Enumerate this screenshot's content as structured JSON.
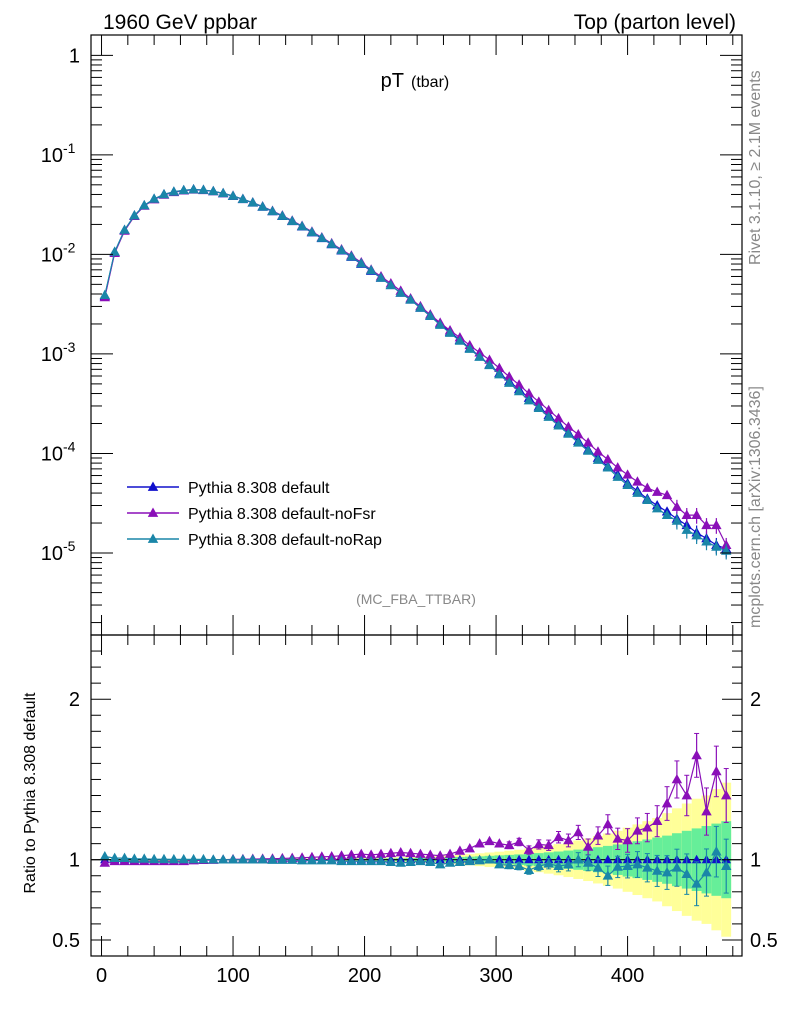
{
  "header": {
    "left": "1960 GeV ppbar",
    "right": "Top (parton level)"
  },
  "main_title": {
    "main": "pT",
    "sub": "(tbar)"
  },
  "side": {
    "rivet": "Rivet 3.1.10, ≥ 2.1M events",
    "mcplots": "mcplots.cern.ch [arXiv:1306.3436]"
  },
  "analysis_tag": "(MC_FBA_TTBAR)",
  "ratio_ylabel": "Ratio to Pythia 8.308 default",
  "colors": {
    "default": "#1010cc",
    "noFsr": "#8a0fb8",
    "noRap": "#1a86a8",
    "band_yellow": "#ffff99",
    "band_green": "#66ee99"
  },
  "chart_data": [
    {
      "type": "scatter",
      "panel": "main",
      "yscale": "log",
      "xlim": [
        -8,
        487
      ],
      "ylim": [
        1.5e-06,
        1.6
      ],
      "ytick_labels": [
        "1",
        "10^-1",
        "10^-2",
        "10^-3",
        "10^-4",
        "10^-5"
      ],
      "legend": {
        "placement": "bottom-left"
      },
      "x": [
        2.5,
        10,
        17.5,
        25,
        32.5,
        40,
        47.5,
        55,
        62.5,
        70,
        77.5,
        85,
        92.5,
        100,
        107.5,
        115,
        122.5,
        130,
        137.5,
        145,
        152.5,
        160,
        167.5,
        175,
        182.5,
        190,
        197.5,
        205,
        212.5,
        220,
        227.5,
        235,
        242.5,
        250,
        257.5,
        265,
        272.5,
        280,
        287.5,
        295,
        302.5,
        310,
        317.5,
        325,
        332.5,
        340,
        347.5,
        355,
        362.5,
        370,
        377.5,
        385,
        392.5,
        400,
        407.5,
        415,
        422.5,
        430,
        437.5,
        445,
        452.5,
        460,
        467.5,
        475
      ],
      "series": [
        {
          "name": "Pythia 8.308 default",
          "color": "#1010cc",
          "values": [
            0.0038,
            0.0105,
            0.0175,
            0.0245,
            0.031,
            0.036,
            0.04,
            0.0425,
            0.044,
            0.0448,
            0.0442,
            0.043,
            0.041,
            0.0385,
            0.0358,
            0.033,
            0.03,
            0.027,
            0.0242,
            0.0215,
            0.019,
            0.0166,
            0.0145,
            0.0126,
            0.0109,
            0.0094,
            0.008,
            0.0068,
            0.0058,
            0.0049,
            0.0041,
            0.0035,
            0.0029,
            0.0024,
            0.002,
            0.00166,
            0.00138,
            0.00114,
            0.00094,
            0.00078,
            0.00064,
            0.00053,
            0.00044,
            0.00036,
            0.000295,
            0.000242,
            0.000198,
            0.000162,
            0.000133,
            0.000109,
            9e-05,
            7.4e-05,
            6.1e-05,
            5e-05,
            4.2e-05,
            3.5e-05,
            3e-05,
            2.6e-05,
            2.2e-05,
            1.9e-05,
            1.6e-05,
            1.4e-05,
            1.2e-05,
            1.1e-05
          ]
        },
        {
          "name": "Pythia 8.308 default-noFsr",
          "color": "#8a0fb8",
          "values": [
            0.0037,
            0.0103,
            0.0172,
            0.0242,
            0.0307,
            0.0356,
            0.0396,
            0.0421,
            0.0437,
            0.0446,
            0.0441,
            0.0429,
            0.041,
            0.0386,
            0.0359,
            0.0331,
            0.0302,
            0.0273,
            0.0245,
            0.0218,
            0.0193,
            0.0169,
            0.0148,
            0.0129,
            0.0112,
            0.0097,
            0.0083,
            0.007,
            0.006,
            0.0051,
            0.0043,
            0.0036,
            0.003,
            0.00248,
            0.00205,
            0.00172,
            0.00146,
            0.00122,
            0.00103,
            0.00087,
            0.00072,
            0.00059,
            0.00049,
            0.0004,
            0.00033,
            0.000272,
            0.000225,
            0.000185,
            0.000155,
            0.000128,
            0.000104,
            8.7e-05,
            7.2e-05,
            6.1e-05,
            5.2e-05,
            4.5e-05,
            4.1e-05,
            3.8e-05,
            2.9e-05,
            2.4e-05,
            2.4e-05,
            1.9e-05,
            1.9e-05,
            1.2e-05
          ]
        },
        {
          "name": "Pythia 8.308 default-noRap",
          "color": "#1a86a8",
          "values": [
            0.0039,
            0.0106,
            0.0176,
            0.0246,
            0.0311,
            0.0361,
            0.0401,
            0.0426,
            0.0441,
            0.0449,
            0.0443,
            0.0431,
            0.0411,
            0.0386,
            0.0359,
            0.0331,
            0.0301,
            0.0271,
            0.0243,
            0.0216,
            0.0191,
            0.0167,
            0.0146,
            0.0127,
            0.011,
            0.0095,
            0.0081,
            0.0069,
            0.0058,
            0.0049,
            0.0041,
            0.0035,
            0.0029,
            0.0024,
            0.00195,
            0.00162,
            0.00135,
            0.00112,
            0.00093,
            0.00077,
            0.00062,
            0.00051,
            0.00042,
            0.00034,
            0.000285,
            0.000232,
            0.00019,
            0.000157,
            0.000128,
            0.000106,
            8.6e-05,
            7.2e-05,
            5.8e-05,
            4.8e-05,
            4e-05,
            3.4e-05,
            2.8e-05,
            2.4e-05,
            2.1e-05,
            1.7e-05,
            1.5e-05,
            1.3e-05,
            1.15e-05,
            1.05e-05
          ]
        }
      ]
    },
    {
      "type": "scatter",
      "panel": "ratio",
      "xlim": [
        -8,
        487
      ],
      "ylim": [
        0.4,
        2.4
      ],
      "ylabel": "Ratio to Pythia 8.308 default",
      "xtick_labels": [
        "0",
        "100",
        "200",
        "300",
        "400"
      ],
      "ytick_labels": [
        "0.5",
        "1",
        "2"
      ],
      "reference_line": 1,
      "x": [
        2.5,
        10,
        17.5,
        25,
        32.5,
        40,
        47.5,
        55,
        62.5,
        70,
        77.5,
        85,
        92.5,
        100,
        107.5,
        115,
        122.5,
        130,
        137.5,
        145,
        152.5,
        160,
        167.5,
        175,
        182.5,
        190,
        197.5,
        205,
        212.5,
        220,
        227.5,
        235,
        242.5,
        250,
        257.5,
        265,
        272.5,
        280,
        287.5,
        295,
        302.5,
        310,
        317.5,
        325,
        332.5,
        340,
        347.5,
        355,
        362.5,
        370,
        377.5,
        385,
        392.5,
        400,
        407.5,
        415,
        422.5,
        430,
        437.5,
        445,
        452.5,
        460,
        467.5,
        475
      ],
      "band_halfwidth_yellow": [
        0.005,
        0.005,
        0.005,
        0.005,
        0.005,
        0.005,
        0.005,
        0.005,
        0.005,
        0.005,
        0.005,
        0.005,
        0.005,
        0.005,
        0.005,
        0.005,
        0.005,
        0.005,
        0.006,
        0.006,
        0.007,
        0.007,
        0.008,
        0.008,
        0.009,
        0.01,
        0.011,
        0.012,
        0.013,
        0.014,
        0.016,
        0.018,
        0.02,
        0.022,
        0.025,
        0.028,
        0.031,
        0.035,
        0.04,
        0.045,
        0.05,
        0.056,
        0.062,
        0.07,
        0.078,
        0.087,
        0.097,
        0.108,
        0.12,
        0.133,
        0.148,
        0.163,
        0.18,
        0.2,
        0.22,
        0.24,
        0.26,
        0.29,
        0.32,
        0.35,
        0.38,
        0.4,
        0.44,
        0.48
      ],
      "band_halfwidth_green": [
        0.003,
        0.003,
        0.003,
        0.003,
        0.003,
        0.003,
        0.003,
        0.003,
        0.003,
        0.003,
        0.003,
        0.003,
        0.003,
        0.003,
        0.003,
        0.003,
        0.003,
        0.003,
        0.003,
        0.003,
        0.004,
        0.004,
        0.004,
        0.005,
        0.005,
        0.006,
        0.006,
        0.007,
        0.007,
        0.008,
        0.009,
        0.01,
        0.011,
        0.012,
        0.014,
        0.015,
        0.017,
        0.019,
        0.021,
        0.024,
        0.027,
        0.03,
        0.033,
        0.037,
        0.041,
        0.046,
        0.051,
        0.057,
        0.063,
        0.07,
        0.078,
        0.086,
        0.095,
        0.105,
        0.115,
        0.126,
        0.138,
        0.15,
        0.165,
        0.18,
        0.195,
        0.21,
        0.225,
        0.24
      ],
      "series": [
        {
          "name": "Pythia 8.308 default-noFsr",
          "color": "#8a0fb8",
          "values": [
            0.98,
            0.99,
            0.99,
            0.99,
            0.99,
            0.99,
            0.99,
            0.99,
            0.99,
            0.995,
            0.997,
            0.998,
            1.0,
            1.002,
            1.003,
            1.004,
            1.005,
            1.006,
            1.008,
            1.01,
            1.012,
            1.015,
            1.018,
            1.02,
            1.025,
            1.03,
            1.035,
            1.03,
            1.035,
            1.04,
            1.045,
            1.04,
            1.035,
            1.03,
            1.025,
            1.035,
            1.055,
            1.07,
            1.1,
            1.115,
            1.1,
            1.09,
            1.11,
            1.06,
            1.095,
            1.09,
            1.14,
            1.12,
            1.17,
            1.08,
            1.15,
            1.22,
            1.13,
            1.12,
            1.18,
            1.2,
            1.24,
            1.35,
            1.5,
            1.4,
            1.65,
            1.3,
            1.55,
            1.4
          ]
        },
        {
          "name": "Pythia 8.308 default-noRap",
          "color": "#1a86a8",
          "values": [
            1.02,
            1.01,
            1.01,
            1.005,
            1.005,
            1.003,
            1.003,
            1.002,
            1.002,
            1.002,
            1.002,
            1.0,
            1.0,
            1.0,
            1.0,
            1.0,
            1.0,
            0.998,
            0.998,
            0.998,
            0.995,
            0.995,
            0.995,
            0.995,
            0.99,
            0.99,
            0.99,
            0.99,
            0.99,
            0.985,
            0.98,
            0.985,
            0.99,
            0.985,
            0.97,
            0.98,
            0.985,
            0.99,
            0.995,
            1.0,
            0.97,
            0.965,
            0.96,
            0.935,
            0.96,
            0.975,
            0.96,
            0.97,
            1.0,
            0.98,
            0.95,
            0.9,
            0.955,
            0.96,
            0.97,
            0.95,
            0.93,
            0.92,
            0.95,
            0.91,
            0.85,
            0.92,
            1.05,
            0.96
          ]
        }
      ]
    }
  ]
}
